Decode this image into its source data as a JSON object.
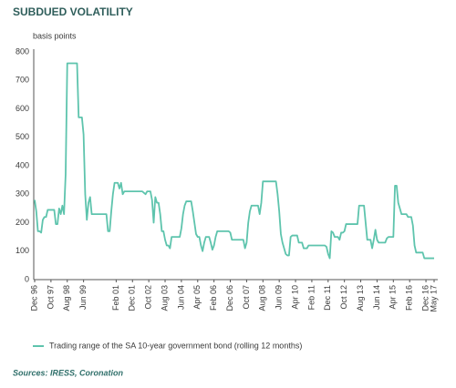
{
  "chart_data": {
    "type": "line",
    "title": "SUBDUED VOLATILITY",
    "y_label": "basis points",
    "source": "Sources: IRESS, Coronation",
    "categories": [
      "Dec 96",
      null,
      null,
      null,
      null,
      null,
      null,
      null,
      null,
      null,
      "Oct 97",
      null,
      null,
      null,
      null,
      null,
      null,
      null,
      null,
      null,
      "Aug 98",
      null,
      null,
      null,
      null,
      null,
      null,
      null,
      null,
      null,
      "Jun 99",
      null,
      null,
      null,
      null,
      null,
      null,
      null,
      null,
      null,
      null,
      null,
      null,
      null,
      null,
      null,
      null,
      null,
      null,
      null,
      "Feb 01",
      null,
      null,
      null,
      null,
      null,
      null,
      null,
      null,
      null,
      "Dec 01",
      null,
      null,
      null,
      null,
      null,
      null,
      null,
      null,
      null,
      "Oct 02",
      null,
      null,
      null,
      null,
      null,
      null,
      null,
      null,
      null,
      "Aug 03",
      null,
      null,
      null,
      null,
      null,
      null,
      null,
      null,
      null,
      "Jun 04",
      null,
      null,
      null,
      null,
      null,
      null,
      null,
      null,
      null,
      "Apr 05",
      null,
      null,
      null,
      null,
      null,
      null,
      null,
      null,
      null,
      "Feb 06",
      null,
      null,
      null,
      null,
      null,
      null,
      null,
      null,
      null,
      "Dec 06",
      null,
      null,
      null,
      null,
      null,
      null,
      null,
      null,
      null,
      "Oct 07",
      null,
      null,
      null,
      null,
      null,
      null,
      null,
      null,
      null,
      "Aug 08",
      null,
      null,
      null,
      null,
      null,
      null,
      null,
      null,
      null,
      "Jun 09",
      null,
      null,
      null,
      null,
      null,
      null,
      null,
      null,
      null,
      "Apr 10",
      null,
      null,
      null,
      null,
      null,
      null,
      null,
      null,
      null,
      "Feb 11",
      null,
      null,
      null,
      null,
      null,
      null,
      null,
      null,
      null,
      "Dec 11",
      null,
      null,
      null,
      null,
      null,
      null,
      null,
      null,
      null,
      "Oct 12",
      null,
      null,
      null,
      null,
      null,
      null,
      null,
      null,
      null,
      "Aug 13",
      null,
      null,
      null,
      null,
      null,
      null,
      null,
      null,
      null,
      "Jun 14",
      null,
      null,
      null,
      null,
      null,
      null,
      null,
      null,
      null,
      "Apr 15",
      null,
      null,
      null,
      null,
      null,
      null,
      null,
      null,
      null,
      "Feb 16",
      null,
      null,
      null,
      null,
      null,
      null,
      null,
      null,
      null,
      "Dec 16",
      null,
      null,
      null,
      null,
      "May 17"
    ],
    "series": [
      {
        "name": "Trading range of the SA 10-year government bond (rolling 12 months)",
        "color": "#5ec4ad",
        "values": [
          280,
          240,
          170,
          170,
          165,
          210,
          220,
          220,
          245,
          245,
          245,
          245,
          245,
          195,
          195,
          250,
          230,
          260,
          230,
          370,
          760,
          760,
          760,
          760,
          760,
          760,
          760,
          570,
          570,
          570,
          510,
          300,
          210,
          270,
          290,
          230,
          230,
          230,
          230,
          230,
          230,
          230,
          230,
          230,
          230,
          170,
          170,
          240,
          300,
          340,
          340,
          340,
          320,
          340,
          300,
          310,
          310,
          310,
          310,
          310,
          310,
          310,
          310,
          310,
          310,
          310,
          310,
          305,
          300,
          310,
          310,
          310,
          280,
          200,
          290,
          270,
          270,
          230,
          170,
          170,
          140,
          120,
          120,
          110,
          150,
          150,
          150,
          150,
          150,
          150,
          180,
          230,
          260,
          275,
          275,
          275,
          275,
          240,
          200,
          160,
          150,
          150,
          120,
          100,
          130,
          150,
          150,
          150,
          130,
          105,
          120,
          150,
          170,
          170,
          170,
          170,
          170,
          170,
          170,
          170,
          165,
          140,
          140,
          140,
          140,
          140,
          140,
          140,
          140,
          110,
          130,
          200,
          240,
          260,
          260,
          260,
          260,
          260,
          230,
          270,
          345,
          345,
          345,
          345,
          345,
          345,
          345,
          345,
          345,
          300,
          240,
          160,
          130,
          110,
          90,
          85,
          85,
          150,
          155,
          155,
          155,
          155,
          130,
          130,
          130,
          110,
          110,
          110,
          120,
          120,
          120,
          120,
          120,
          120,
          120,
          120,
          120,
          120,
          120,
          115,
          90,
          75,
          170,
          165,
          150,
          150,
          150,
          140,
          165,
          165,
          170,
          195,
          195,
          195,
          195,
          195,
          195,
          195,
          195,
          260,
          260,
          260,
          260,
          200,
          140,
          140,
          140,
          110,
          140,
          175,
          140,
          130,
          130,
          130,
          130,
          130,
          145,
          150,
          150,
          150,
          150,
          330,
          330,
          270,
          250,
          230,
          230,
          230,
          230,
          220,
          220,
          220,
          190,
          120,
          95,
          95,
          95,
          95,
          95,
          75,
          75,
          75,
          75,
          75,
          75,
          75
        ]
      }
    ],
    "ylim": [
      0,
      800
    ],
    "yticks": [
      0,
      100,
      200,
      300,
      400,
      500,
      600,
      700,
      800
    ],
    "grid": false
  }
}
